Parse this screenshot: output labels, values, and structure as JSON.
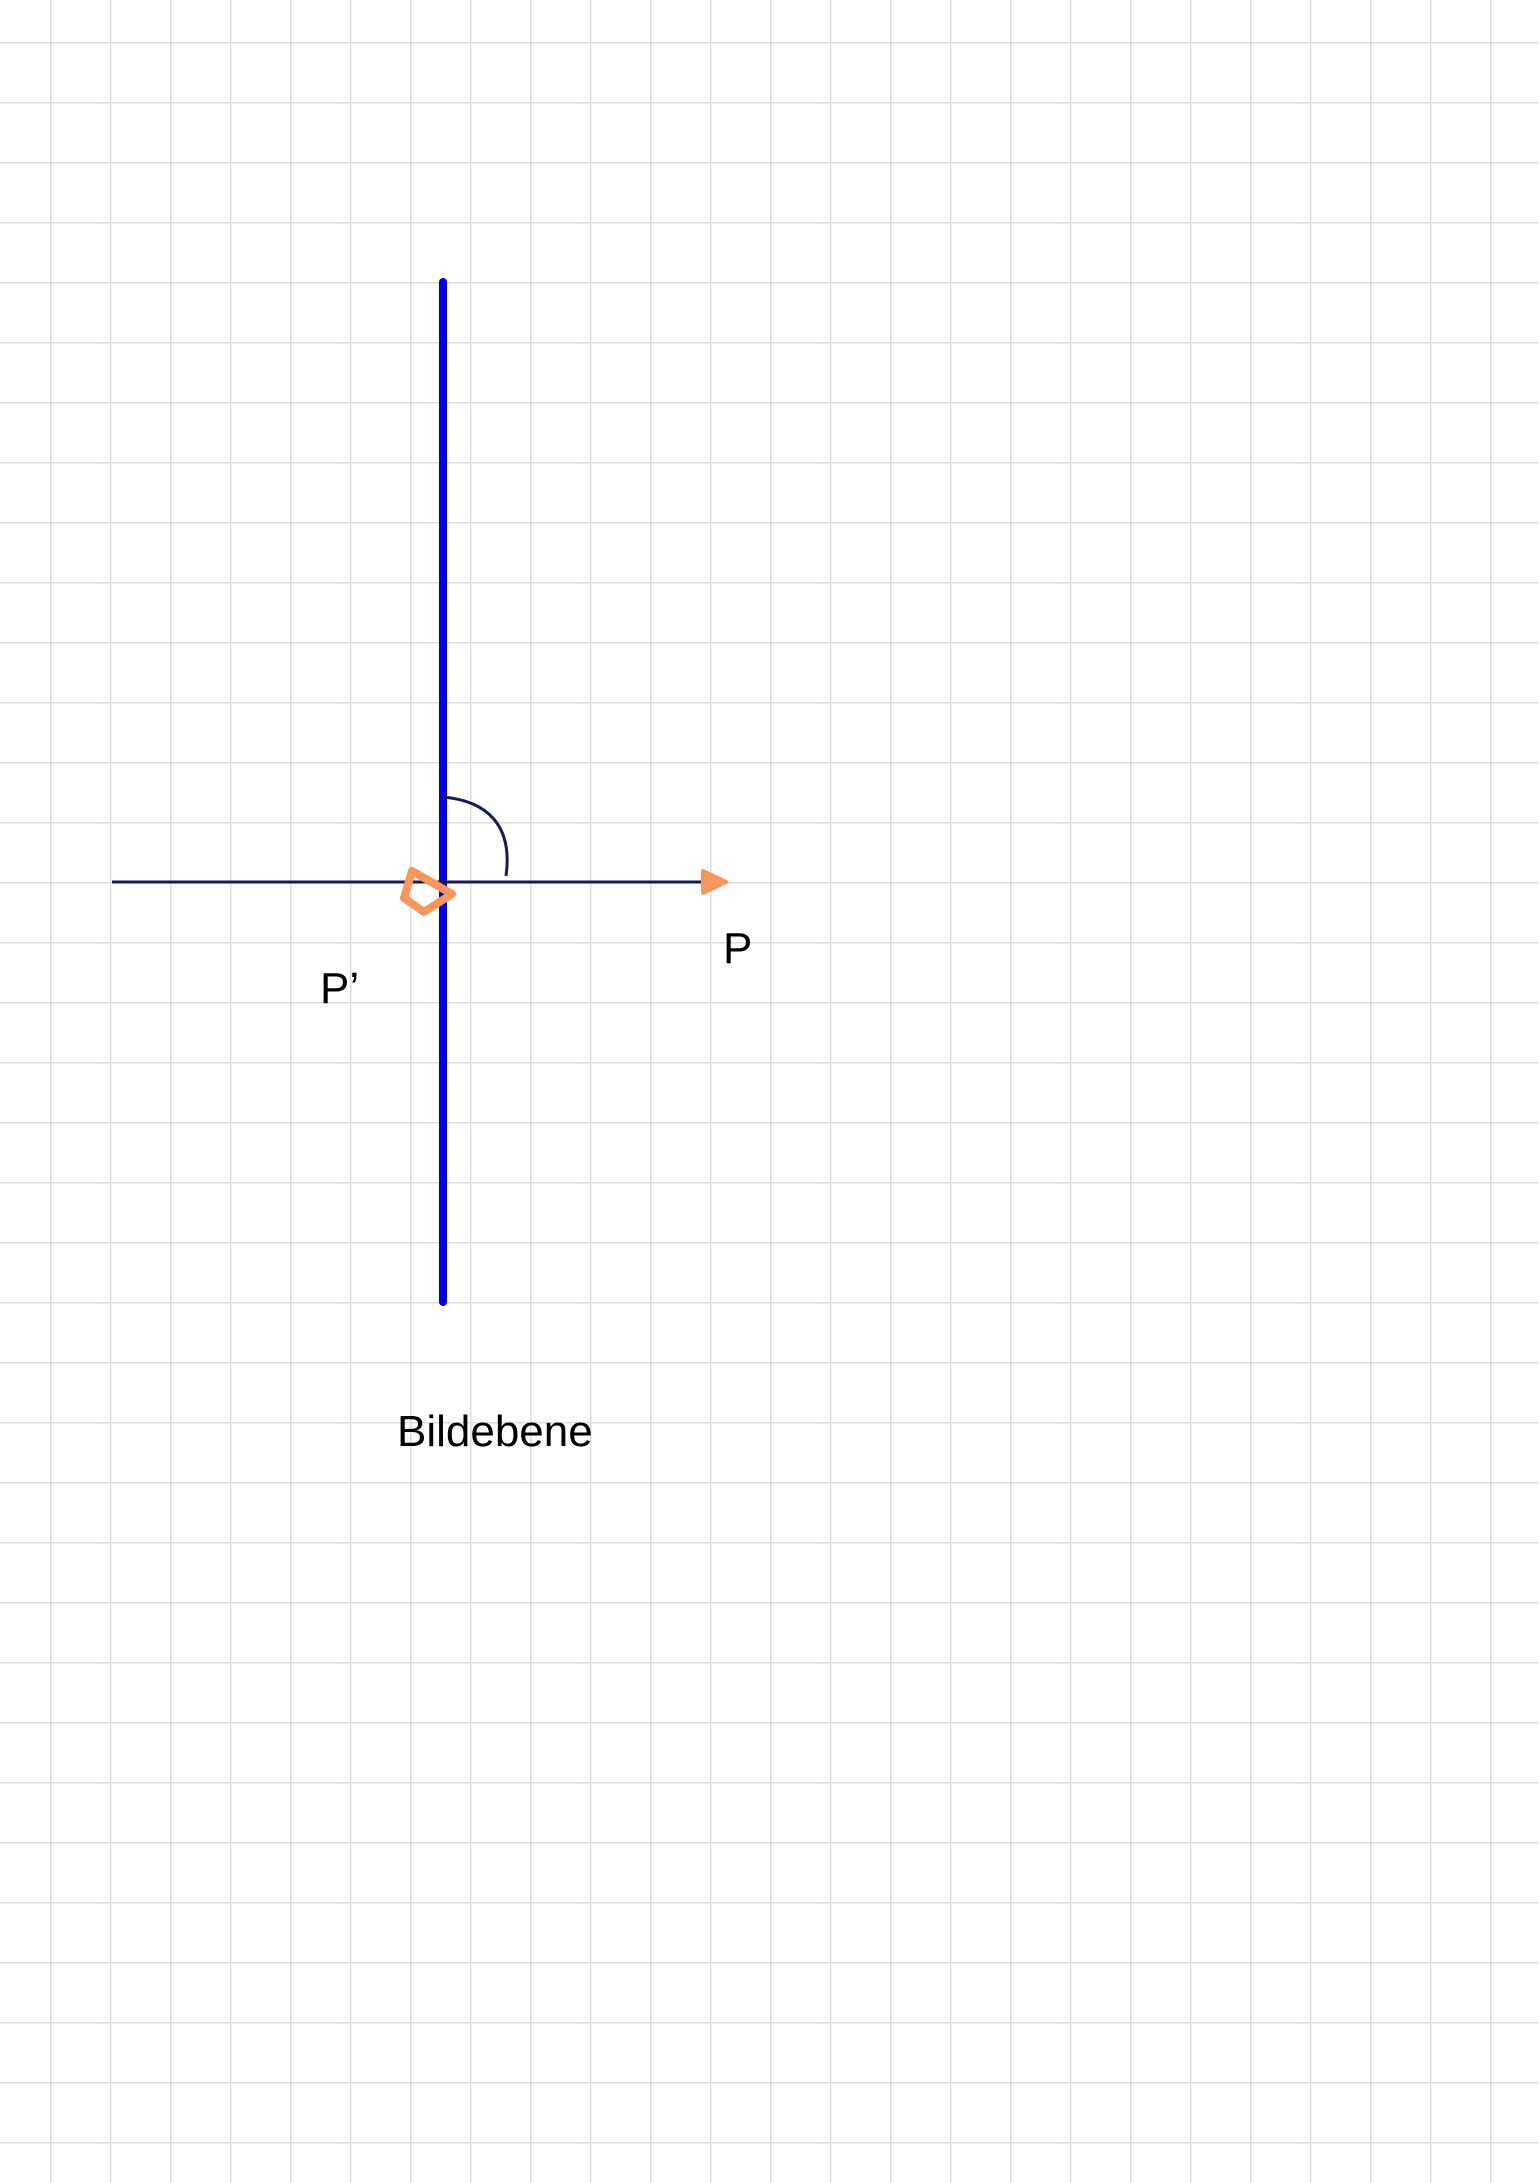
{
  "labels": {
    "point_p": "P",
    "point_p_prime": "P’",
    "image_plane": "Bildebene"
  },
  "colors": {
    "image_plane_line": "#0000ee",
    "ray_line": "#1a1a4e",
    "marker_orange": "#f5965a",
    "grid": "#d9dde1",
    "text": "#000000"
  },
  "icons": {
    "pentagon_marker": "pentagon-icon",
    "arrowhead_marker": "arrowhead-icon",
    "right_angle_arc": "angle-arc-icon"
  }
}
